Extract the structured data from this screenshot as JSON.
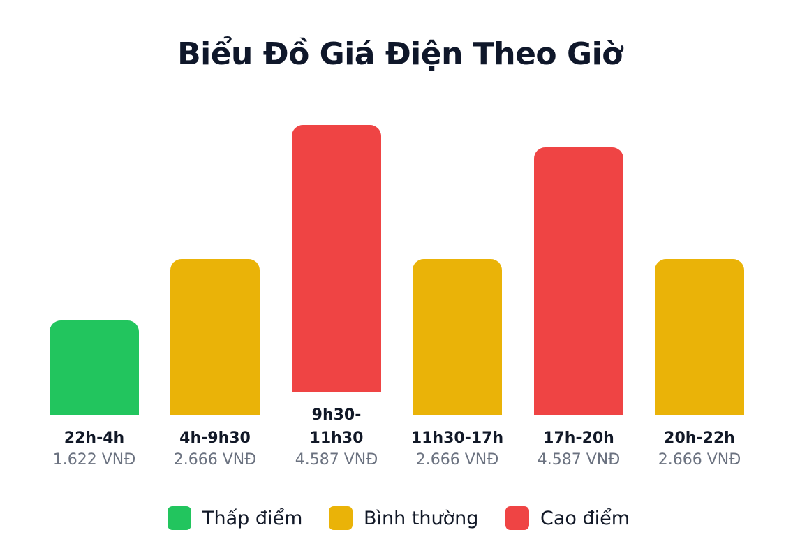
{
  "chart_data": {
    "type": "bar",
    "title": "Biểu Đồ Giá Điện Theo Giờ",
    "categories": [
      "22h-4h",
      "4h-9h30",
      "9h30-\n11h30",
      "11h30-17h",
      "17h-20h",
      "20h-22h"
    ],
    "values": [
      1622,
      2666,
      4587,
      2666,
      4587,
      2666
    ],
    "value_labels": [
      "1.622 VNĐ",
      "2.666 VNĐ",
      "4.587 VNĐ",
      "2.666 VNĐ",
      "4.587 VNĐ",
      "2.666 VNĐ"
    ],
    "tiers": [
      "low",
      "normal",
      "peak",
      "normal",
      "peak",
      "normal"
    ],
    "legend": [
      {
        "key": "low",
        "label": "Thấp điểm",
        "color": "#22c55e"
      },
      {
        "key": "normal",
        "label": "Bình thường",
        "color": "#eab308"
      },
      {
        "key": "peak",
        "label": "Cao điểm",
        "color": "#ef4444"
      }
    ],
    "legend_position": "bottom-center",
    "grid": false,
    "ylim": [
      0,
      5000
    ]
  }
}
